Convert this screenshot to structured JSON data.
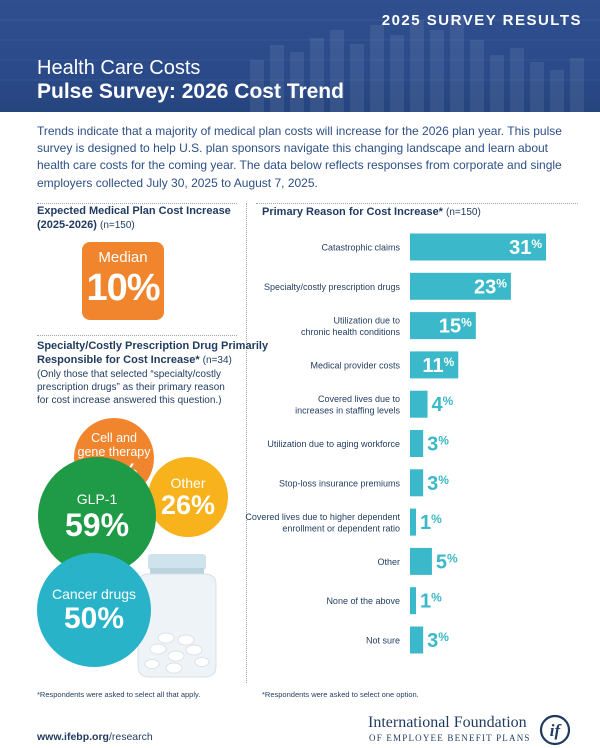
{
  "header": {
    "survey_year": "2025",
    "survey_label": "SURVEY RESULTS",
    "title_line1": "Health Care Costs",
    "title_line2": "Pulse Survey: 2026 Cost Trend"
  },
  "intro": "Trends indicate that a majority of medical plan costs will increase for the 2026 plan year. This pulse survey is designed to help U.S. plan sponsors navigate this changing landscape and learn about health care costs for the coming year. The data below reflects responses from corporate and single employers collected July 30, 2025 to August 7, 2025.",
  "median_section": {
    "title_line1": "Expected Medical Plan Cost Increase",
    "title_line2": "(2025-2026)",
    "n": "(n=150)",
    "box_label": "Median",
    "box_value": "10%"
  },
  "drug_section": {
    "title_line1": "Specialty/Costly Prescription Drug Primarily",
    "title_line2": "Responsible for Cost Increase*",
    "n": "(n=34)",
    "note_line1": "(Only those that selected “specialty/costly",
    "note_line2": "prescription drugs” as their primary reason",
    "note_line3": "for cost increase answered this question.)",
    "bubbles": [
      {
        "label_line1": "Cell and",
        "label_line2": "gene therapy",
        "value": "21%",
        "color": "#f0852d"
      },
      {
        "label_line1": "Other",
        "label_line2": "",
        "value": "26%",
        "color": "#f7b21c"
      },
      {
        "label_line1": "GLP-1",
        "label_line2": "",
        "value": "59%",
        "color": "#1f9a46"
      },
      {
        "label_line1": "Cancer drugs",
        "label_line2": "",
        "value": "50%",
        "color": "#28b3c9"
      }
    ],
    "footnote": "*Respondents were asked to select all that apply."
  },
  "chart_data": {
    "type": "bar",
    "orientation": "horizontal",
    "title": "Primary Reason for Cost Increase*",
    "n": "(n=150)",
    "categories": [
      [
        "Catastrophic claims"
      ],
      [
        "Specialty/costly prescription drugs"
      ],
      [
        "Utilization due to",
        "chronic health conditions"
      ],
      [
        "Medical provider costs"
      ],
      [
        "Covered lives due to",
        "increases in staffing levels"
      ],
      [
        "Utilization due to aging workforce"
      ],
      [
        "Stop-loss insurance premiums"
      ],
      [
        "Covered lives due to higher dependent",
        "enrollment or dependent ratio"
      ],
      [
        "Other"
      ],
      [
        "None of the above"
      ],
      [
        "Not sure"
      ]
    ],
    "values": [
      31,
      23,
      15,
      11,
      4,
      3,
      3,
      1,
      5,
      1,
      3
    ],
    "value_labels": [
      "31%",
      "23%",
      "15%",
      "11%",
      "4%",
      "3%",
      "3%",
      "1%",
      "5%",
      "1%",
      "3%"
    ],
    "xlim": [
      0,
      31
    ],
    "grid": false,
    "bar_color": "#3bb8c9",
    "footnote": "*Respondents were asked to select one option."
  },
  "footer": {
    "url_bold": "www.ifebp.org",
    "url_rest": "/research",
    "org_line1": "International Foundation",
    "org_line2": "OF EMPLOYEE BENEFIT PLANS",
    "logo_mark": "if"
  },
  "colors": {
    "header_blue": "#2a4a8a",
    "orange": "#f0852d",
    "yellow": "#f7b21c",
    "green": "#1f9a46",
    "teal": "#28b3c9",
    "bar_teal": "#3bb8c9",
    "text_navy": "#1f3a5f"
  }
}
